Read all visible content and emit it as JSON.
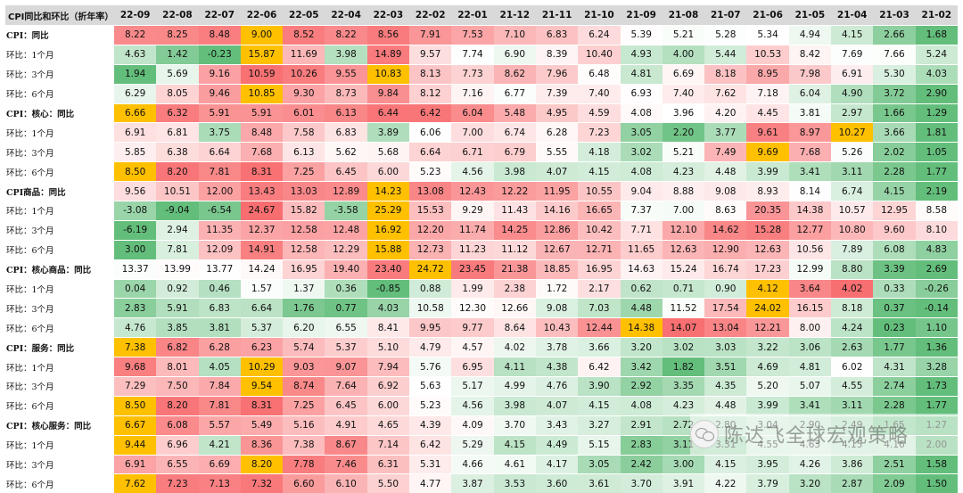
{
  "table": {
    "corner_label": "CPI同比和环比（折年率）",
    "columns": [
      "22-09",
      "22-08",
      "22-07",
      "22-06",
      "22-05",
      "22-04",
      "22-03",
      "22-02",
      "22-01",
      "21-12",
      "21-11",
      "21-10",
      "21-09",
      "21-08",
      "21-07",
      "21-06",
      "21-05",
      "21-04",
      "21-03",
      "21-02"
    ],
    "rows": [
      {
        "label": "CPI：同比",
        "bold": true,
        "values": [
          "8.22",
          "8.25",
          "8.48",
          "9.00",
          "8.52",
          "8.22",
          "8.56",
          "7.91",
          "7.53",
          "7.10",
          "6.83",
          "6.24",
          "5.39",
          "5.21",
          "5.28",
          "5.34",
          "4.94",
          "4.15",
          "2.66",
          "1.68"
        ]
      },
      {
        "label": "环比：1个月",
        "bold": false,
        "values": [
          "4.63",
          "1.42",
          "-0.23",
          "15.87",
          "11.69",
          "3.98",
          "14.89",
          "9.57",
          "7.74",
          "6.90",
          "8.39",
          "10.40",
          "4.93",
          "4.00",
          "5.44",
          "10.53",
          "8.42",
          "7.69",
          "7.66",
          "5.24"
        ]
      },
      {
        "label": "环比：3个月",
        "bold": false,
        "values": [
          "1.94",
          "5.69",
          "9.16",
          "10.59",
          "10.26",
          "9.55",
          "10.83",
          "8.13",
          "7.73",
          "8.62",
          "7.96",
          "6.48",
          "4.81",
          "6.69",
          "8.18",
          "8.95",
          "7.98",
          "6.91",
          "5.30",
          "4.03"
        ]
      },
      {
        "label": "环比：6个月",
        "bold": false,
        "values": [
          "6.29",
          "8.05",
          "9.46",
          "10.85",
          "9.30",
          "8.73",
          "9.84",
          "8.12",
          "7.16",
          "6.77",
          "7.39",
          "7.40",
          "6.93",
          "7.40",
          "7.62",
          "7.18",
          "6.04",
          "4.90",
          "3.72",
          "2.90"
        ]
      },
      {
        "label": "CPI：核心：同比",
        "bold": true,
        "values": [
          "6.66",
          "6.32",
          "5.91",
          "5.91",
          "6.01",
          "6.13",
          "6.44",
          "6.42",
          "6.04",
          "5.48",
          "4.95",
          "4.59",
          "4.08",
          "3.96",
          "4.20",
          "4.45",
          "3.81",
          "2.97",
          "1.66",
          "1.29"
        ]
      },
      {
        "label": "环比：1个月",
        "bold": false,
        "values": [
          "6.91",
          "6.81",
          "3.75",
          "8.48",
          "7.58",
          "6.83",
          "3.89",
          "6.06",
          "7.00",
          "6.74",
          "6.28",
          "7.23",
          "3.05",
          "2.20",
          "3.77",
          "9.61",
          "8.97",
          "10.27",
          "3.66",
          "1.81"
        ]
      },
      {
        "label": "环比：3个月",
        "bold": false,
        "values": [
          "5.85",
          "6.38",
          "6.64",
          "7.68",
          "6.13",
          "5.62",
          "5.68",
          "6.64",
          "6.71",
          "6.79",
          "5.55",
          "4.18",
          "3.02",
          "5.21",
          "7.49",
          "9.69",
          "7.68",
          "5.26",
          "2.02",
          "1.05"
        ]
      },
      {
        "label": "环比：6个月",
        "bold": false,
        "values": [
          "8.50",
          "8.20",
          "7.81",
          "8.31",
          "7.25",
          "6.45",
          "6.00",
          "5.23",
          "4.56",
          "3.98",
          "4.07",
          "4.15",
          "4.08",
          "4.23",
          "4.48",
          "3.99",
          "3.41",
          "3.11",
          "2.28",
          "1.77"
        ]
      },
      {
        "label": "CPI商品：同比",
        "bold": true,
        "values": [
          "9.56",
          "10.51",
          "12.00",
          "13.43",
          "13.03",
          "12.89",
          "14.23",
          "13.08",
          "12.43",
          "12.22",
          "11.95",
          "10.55",
          "9.04",
          "8.88",
          "9.08",
          "8.93",
          "8.14",
          "6.74",
          "4.15",
          "2.19"
        ]
      },
      {
        "label": "环比：1个月",
        "bold": false,
        "values": [
          "-3.08",
          "-9.04",
          "-6.54",
          "24.67",
          "15.82",
          "-3.58",
          "25.29",
          "15.53",
          "9.29",
          "11.43",
          "14.16",
          "16.65",
          "7.37",
          "7.00",
          "8.63",
          "20.35",
          "14.38",
          "10.57",
          "12.95",
          "8.58"
        ]
      },
      {
        "label": "环比：3个月",
        "bold": false,
        "values": [
          "-6.19",
          "2.94",
          "11.35",
          "12.37",
          "12.58",
          "12.48",
          "16.92",
          "12.20",
          "11.74",
          "14.25",
          "12.86",
          "10.42",
          "7.71",
          "12.10",
          "14.62",
          "15.28",
          "12.77",
          "10.80",
          "9.60",
          "8.10"
        ]
      },
      {
        "label": "环比：6个月",
        "bold": false,
        "values": [
          "3.00",
          "7.81",
          "12.09",
          "14.91",
          "12.58",
          "12.29",
          "15.88",
          "12.73",
          "11.23",
          "11.12",
          "12.67",
          "12.71",
          "11.65",
          "12.63",
          "12.90",
          "12.63",
          "10.56",
          "7.89",
          "6.08",
          "4.83"
        ]
      },
      {
        "label": "CPI：核心商品：同比",
        "bold": true,
        "values": [
          "13.37",
          "13.99",
          "13.77",
          "14.24",
          "16.95",
          "19.40",
          "23.40",
          "24.72",
          "23.45",
          "21.38",
          "18.85",
          "16.95",
          "14.63",
          "15.24",
          "16.74",
          "17.23",
          "12.99",
          "8.80",
          "3.39",
          "2.69"
        ]
      },
      {
        "label": "环比：1个月",
        "bold": false,
        "values": [
          "0.04",
          "0.92",
          "0.46",
          "1.57",
          "1.37",
          "0.36",
          "-0.85",
          "0.88",
          "1.99",
          "2.38",
          "1.72",
          "2.17",
          "0.62",
          "0.71",
          "0.90",
          "4.12",
          "3.64",
          "4.02",
          "0.33",
          "-0.26"
        ]
      },
      {
        "label": "环比：3个月",
        "bold": false,
        "values": [
          "2.83",
          "5.91",
          "6.83",
          "6.64",
          "1.76",
          "0.77",
          "4.03",
          "10.58",
          "12.30",
          "12.66",
          "9.08",
          "7.03",
          "4.48",
          "11.52",
          "17.54",
          "24.02",
          "16.15",
          "8.18",
          "0.37",
          "-0.14"
        ]
      },
      {
        "label": "环比：6个月",
        "bold": false,
        "values": [
          "4.76",
          "3.85",
          "3.81",
          "5.37",
          "6.20",
          "6.55",
          "8.41",
          "9.95",
          "9.77",
          "8.64",
          "10.43",
          "12.44",
          "14.38",
          "14.07",
          "13.04",
          "12.21",
          "8.00",
          "4.24",
          "0.23",
          "1.10"
        ]
      },
      {
        "label": "CPI：服务：同比",
        "bold": true,
        "values": [
          "7.38",
          "6.82",
          "6.28",
          "6.23",
          "5.74",
          "5.37",
          "5.10",
          "4.79",
          "4.57",
          "4.02",
          "3.78",
          "3.66",
          "3.20",
          "3.02",
          "3.03",
          "3.22",
          "3.06",
          "2.63",
          "1.77",
          "1.36"
        ]
      },
      {
        "label": "环比：1个月",
        "bold": false,
        "values": [
          "9.68",
          "8.01",
          "4.05",
          "10.29",
          "9.03",
          "9.07",
          "7.94",
          "5.76",
          "6.95",
          "4.11",
          "4.38",
          "6.42",
          "3.42",
          "1.82",
          "3.51",
          "4.69",
          "4.81",
          "6.02",
          "4.31",
          "3.28"
        ]
      },
      {
        "label": "环比：3个月",
        "bold": false,
        "values": [
          "7.29",
          "7.50",
          "7.84",
          "9.54",
          "8.74",
          "7.64",
          "6.92",
          "5.63",
          "5.17",
          "4.99",
          "4.76",
          "3.90",
          "2.92",
          "3.35",
          "4.35",
          "5.20",
          "5.07",
          "4.55",
          "2.74",
          "1.73"
        ]
      },
      {
        "label": "环比：6个月",
        "bold": false,
        "values": [
          "8.50",
          "8.20",
          "7.81",
          "8.31",
          "7.25",
          "6.45",
          "6.00",
          "5.23",
          "4.56",
          "3.98",
          "4.07",
          "4.15",
          "4.08",
          "4.23",
          "4.48",
          "3.99",
          "3.41",
          "3.11",
          "2.28",
          "1.77"
        ]
      },
      {
        "label": "CPI：核心服务：同比",
        "bold": true,
        "values": [
          "6.67",
          "6.08",
          "5.57",
          "5.49",
          "5.16",
          "4.91",
          "4.65",
          "4.39",
          "4.09",
          "3.70",
          "3.43",
          "3.27",
          "2.91",
          "2.72",
          "2.80",
          "3.04",
          "2.90",
          "2.49",
          "1.65",
          "1.27"
        ]
      },
      {
        "label": "环比：1个月",
        "bold": false,
        "values": [
          "9.44",
          "6.96",
          "4.21",
          "8.36",
          "7.38",
          "8.67",
          "7.14",
          "6.42",
          "5.29",
          "4.15",
          "4.49",
          "5.15",
          "2.83",
          "3.11",
          "3.31",
          "4.55",
          "4.63",
          "4.15",
          "4.16",
          "2.00"
        ]
      },
      {
        "label": "环比：3个月",
        "bold": false,
        "values": [
          "6.91",
          "6.55",
          "6.69",
          "8.20",
          "7.78",
          "7.46",
          "6.31",
          "5.31",
          "4.66",
          "4.61",
          "4.17",
          "3.05",
          "2.42",
          "3.00",
          "4.15",
          "3.95",
          "4.26",
          "3.86",
          "2.51",
          "1.58"
        ]
      },
      {
        "label": "环比：6个月",
        "bold": false,
        "values": [
          "7.62",
          "7.23",
          "7.13",
          "7.32",
          "6.60",
          "6.10",
          "5.50",
          "4.77",
          "3.87",
          "3.53",
          "3.60",
          "3.61",
          "3.70",
          "3.91",
          "4.22",
          "3.79",
          "3.20",
          "2.87",
          "2.09",
          "1.50"
        ]
      }
    ]
  },
  "watermark": {
    "icon": "wechat-icon",
    "text": "陈达飞全球宏观策略"
  },
  "colors": {
    "header_bg": "#d9d9d9",
    "max_highlight": "#ffc000",
    "high": "#f8696b",
    "mid": "#ffffff",
    "low": "#63be7b"
  }
}
